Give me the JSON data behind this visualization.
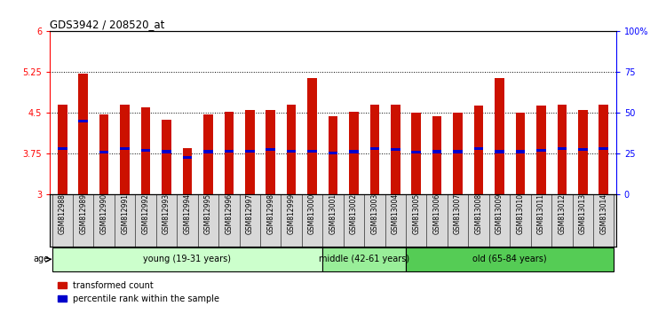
{
  "title": "GDS3942 / 208520_at",
  "samples": [
    "GSM812988",
    "GSM812989",
    "GSM812990",
    "GSM812991",
    "GSM812992",
    "GSM812993",
    "GSM812994",
    "GSM812995",
    "GSM812996",
    "GSM812997",
    "GSM812998",
    "GSM812999",
    "GSM813000",
    "GSM813001",
    "GSM813002",
    "GSM813003",
    "GSM813004",
    "GSM813005",
    "GSM813006",
    "GSM813007",
    "GSM813008",
    "GSM813009",
    "GSM813010",
    "GSM813011",
    "GSM813012",
    "GSM813013",
    "GSM813014"
  ],
  "transformed_count": [
    4.65,
    5.22,
    4.48,
    4.65,
    4.6,
    4.38,
    3.85,
    4.47,
    4.53,
    4.55,
    4.56,
    4.65,
    5.15,
    4.44,
    4.52,
    4.65,
    4.65,
    4.5,
    4.45,
    4.51,
    4.63,
    5.15,
    4.5,
    4.63,
    4.65,
    4.55,
    4.65
  ],
  "percentile_rank": [
    3.84,
    4.35,
    3.78,
    3.84,
    3.82,
    3.79,
    3.68,
    3.79,
    3.8,
    3.8,
    3.83,
    3.8,
    3.8,
    3.76,
    3.79,
    3.84,
    3.83,
    3.78,
    3.79,
    3.79,
    3.84,
    3.79,
    3.79,
    3.82,
    3.84,
    3.83,
    3.84
  ],
  "bar_color": "#cc1100",
  "percentile_color": "#0000cc",
  "ylim_left": [
    3.0,
    6.0
  ],
  "ylim_right": [
    0,
    100
  ],
  "yticks_left": [
    3.0,
    3.75,
    4.5,
    5.25,
    6.0
  ],
  "yticks_right": [
    0,
    25,
    50,
    75,
    100
  ],
  "ytick_labels_left": [
    "3",
    "3.75",
    "4.5",
    "5.25",
    "6"
  ],
  "ytick_labels_right": [
    "0",
    "25",
    "50",
    "75",
    "100%"
  ],
  "hlines": [
    3.75,
    4.5,
    5.25
  ],
  "groups": [
    {
      "label": "young (19-31 years)",
      "start": 0,
      "end": 13,
      "color": "#ccffcc"
    },
    {
      "label": "middle (42-61 years)",
      "start": 13,
      "end": 17,
      "color": "#99ee99"
    },
    {
      "label": "old (65-84 years)",
      "start": 17,
      "end": 27,
      "color": "#55cc55"
    }
  ],
  "age_label": "age",
  "legend_items": [
    {
      "label": "transformed count",
      "color": "#cc1100"
    },
    {
      "label": "percentile rank within the sample",
      "color": "#0000cc"
    }
  ],
  "bar_width": 0.45,
  "background_color": "#ffffff",
  "xtick_bg": "#d8d8d8"
}
